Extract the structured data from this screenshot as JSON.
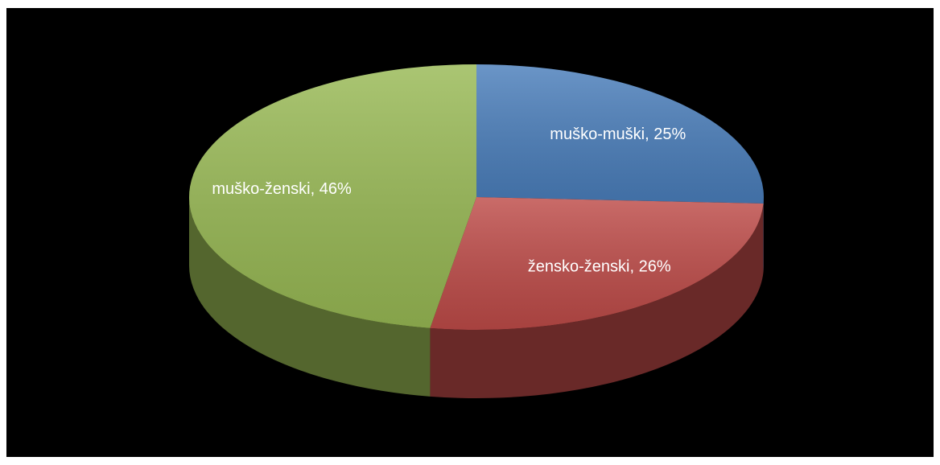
{
  "chart_data": {
    "type": "pie",
    "values": [
      25,
      26,
      46
    ],
    "value_labels": [
      "muško-muški, 25%",
      "žensko-ženski, 26%",
      "muško-ženski, 46%"
    ],
    "colors": [
      "#4a7ebb",
      "#be4b48",
      "#98b954"
    ]
  }
}
